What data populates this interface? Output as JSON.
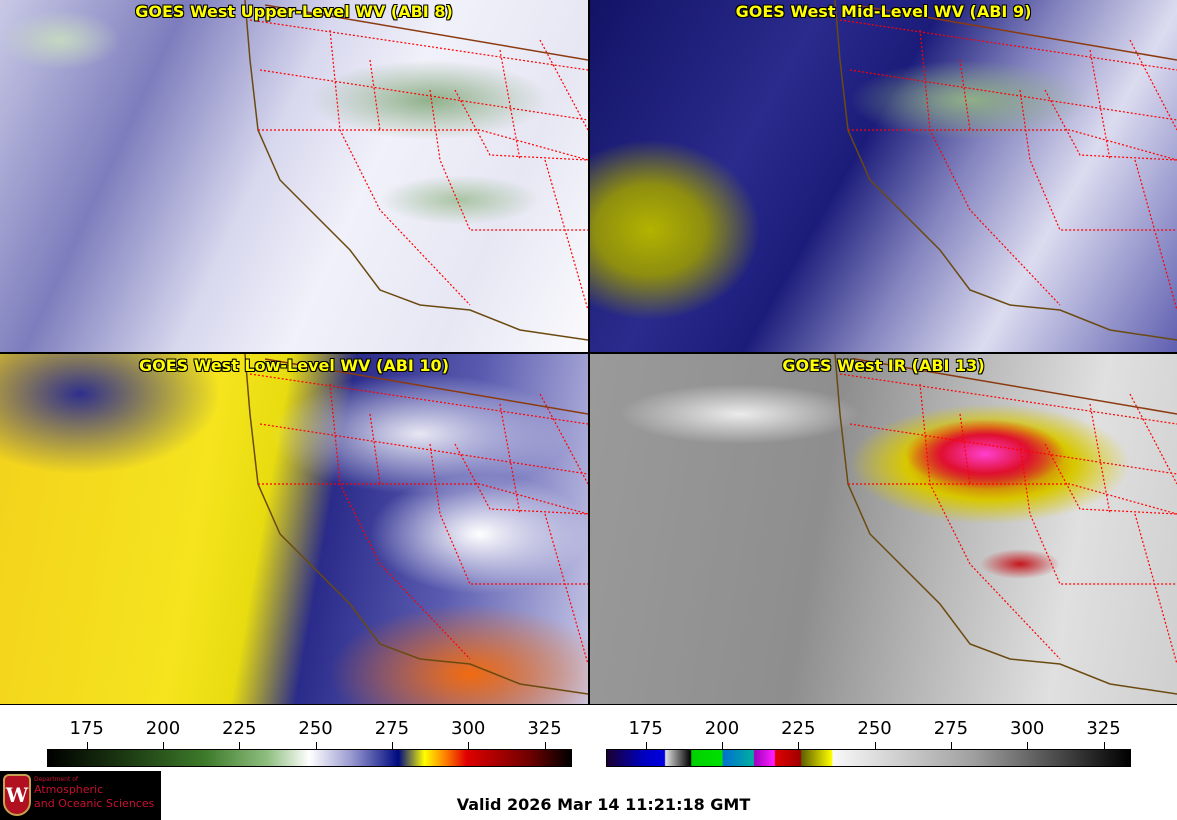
{
  "panels": [
    {
      "title": "GOES West Upper-Level WV (ABI 8)"
    },
    {
      "title": "GOES West Mid-Level WV (ABI 9)"
    },
    {
      "title": "GOES West Low-Level WV (ABI 10)"
    },
    {
      "title": "GOES West IR (ABI 13)"
    }
  ],
  "colorbars": [
    {
      "name": "wv",
      "ticks": [
        "175",
        "200",
        "225",
        "250",
        "275",
        "300",
        "325"
      ],
      "range": [
        162,
        334
      ]
    },
    {
      "name": "ir",
      "ticks": [
        "175",
        "200",
        "225",
        "250",
        "275",
        "300",
        "325"
      ],
      "range": [
        162,
        334
      ]
    }
  ],
  "logo": {
    "line1": "Department of",
    "line2": "Atmospheric",
    "line3": "and Oceanic Sciences",
    "crest": "W"
  },
  "valid_time": "Valid 2026 Mar 14 11:21:18 GMT",
  "colors": {
    "title": "#ffff00",
    "border_state": "#ff0000",
    "coast": "#6b4a10"
  }
}
